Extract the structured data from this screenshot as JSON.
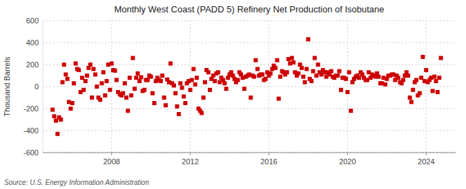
{
  "chart_data": {
    "type": "scatter",
    "title": "Monthly West Coast (PADD 5) Refinery Net Production of Isobutane",
    "y_label": "Thousand Barrels",
    "source": "Source: U.S. Energy Information Administration",
    "color": "#cc0000",
    "marker": "square",
    "grid": true,
    "xlim": [
      2004.5,
      2025.5
    ],
    "xticks": [
      2008,
      2012,
      2016,
      2020,
      2024
    ],
    "ylim": [
      -600,
      600
    ],
    "yticks": [
      -600,
      -400,
      -200,
      0,
      200,
      400,
      600
    ],
    "x": [
      2005.0,
      2005.08,
      2005.17,
      2005.25,
      2005.33,
      2005.42,
      2005.5,
      2005.58,
      2005.67,
      2005.75,
      2005.83,
      2005.92,
      2006.0,
      2006.08,
      2006.17,
      2006.25,
      2006.33,
      2006.42,
      2006.5,
      2006.58,
      2006.67,
      2006.75,
      2006.83,
      2006.92,
      2007.0,
      2007.08,
      2007.17,
      2007.25,
      2007.33,
      2007.42,
      2007.5,
      2007.58,
      2007.67,
      2007.75,
      2007.83,
      2007.92,
      2008.0,
      2008.08,
      2008.17,
      2008.25,
      2008.33,
      2008.42,
      2008.5,
      2008.58,
      2008.67,
      2008.75,
      2008.83,
      2008.92,
      2009.0,
      2009.08,
      2009.17,
      2009.25,
      2009.33,
      2009.42,
      2009.5,
      2009.58,
      2009.67,
      2009.75,
      2009.83,
      2009.92,
      2010.0,
      2010.08,
      2010.17,
      2010.25,
      2010.33,
      2010.42,
      2010.5,
      2010.58,
      2010.67,
      2010.75,
      2010.83,
      2010.92,
      2011.0,
      2011.08,
      2011.17,
      2011.25,
      2011.33,
      2011.42,
      2011.5,
      2011.58,
      2011.67,
      2011.75,
      2011.83,
      2011.92,
      2012.0,
      2012.08,
      2012.17,
      2012.25,
      2012.33,
      2012.42,
      2012.5,
      2012.58,
      2012.67,
      2012.75,
      2012.83,
      2012.92,
      2013.0,
      2013.08,
      2013.17,
      2013.25,
      2013.33,
      2013.42,
      2013.5,
      2013.58,
      2013.67,
      2013.75,
      2013.83,
      2013.92,
      2014.0,
      2014.08,
      2014.17,
      2014.25,
      2014.33,
      2014.42,
      2014.5,
      2014.58,
      2014.67,
      2014.75,
      2014.83,
      2014.92,
      2015.0,
      2015.08,
      2015.17,
      2015.25,
      2015.33,
      2015.42,
      2015.5,
      2015.58,
      2015.67,
      2015.75,
      2015.83,
      2015.92,
      2016.0,
      2016.08,
      2016.17,
      2016.25,
      2016.33,
      2016.42,
      2016.5,
      2016.58,
      2016.67,
      2016.75,
      2016.83,
      2016.92,
      2017.0,
      2017.08,
      2017.17,
      2017.25,
      2017.33,
      2017.42,
      2017.5,
      2017.58,
      2017.67,
      2017.75,
      2017.83,
      2017.92,
      2018.0,
      2018.08,
      2018.17,
      2018.25,
      2018.33,
      2018.42,
      2018.5,
      2018.58,
      2018.67,
      2018.75,
      2018.83,
      2018.92,
      2019.0,
      2019.08,
      2019.17,
      2019.25,
      2019.33,
      2019.42,
      2019.5,
      2019.58,
      2019.67,
      2019.75,
      2019.83,
      2019.92,
      2020.0,
      2020.08,
      2020.17,
      2020.25,
      2020.33,
      2020.42,
      2020.5,
      2020.58,
      2020.67,
      2020.75,
      2020.83,
      2020.92,
      2021.0,
      2021.08,
      2021.17,
      2021.25,
      2021.33,
      2021.42,
      2021.5,
      2021.58,
      2021.67,
      2021.75,
      2021.83,
      2021.92,
      2022.0,
      2022.08,
      2022.17,
      2022.25,
      2022.33,
      2022.42,
      2022.5,
      2022.58,
      2022.67,
      2022.75,
      2022.83,
      2022.92,
      2023.0,
      2023.08,
      2023.17,
      2023.25,
      2023.33,
      2023.42,
      2023.5,
      2023.58,
      2023.67,
      2023.75,
      2023.83,
      2023.92,
      2024.0,
      2024.08,
      2024.17,
      2024.25,
      2024.33,
      2024.42,
      2024.5,
      2024.58,
      2024.67,
      2024.75
    ],
    "values": [
      -210,
      -270,
      -310,
      -430,
      -280,
      -300,
      40,
      200,
      110,
      70,
      -140,
      -200,
      -150,
      30,
      210,
      160,
      150,
      -50,
      80,
      -30,
      50,
      100,
      170,
      200,
      -100,
      160,
      110,
      0,
      -100,
      -120,
      30,
      130,
      -80,
      50,
      200,
      -30,
      210,
      150,
      145,
      60,
      -50,
      -70,
      -80,
      -60,
      30,
      -100,
      -220,
      80,
      -80,
      260,
      -20,
      80,
      120,
      50,
      85,
      -40,
      -30,
      60,
      60,
      100,
      90,
      -60,
      -150,
      50,
      80,
      60,
      50,
      100,
      -100,
      -170,
      65,
      40,
      210,
      30,
      10,
      -60,
      -180,
      -250,
      30,
      -10,
      -90,
      -150,
      30,
      50,
      -30,
      60,
      160,
      20,
      80,
      -200,
      -220,
      -240,
      -100,
      40,
      150,
      130,
      -30,
      70,
      100,
      50,
      120,
      130,
      40,
      80,
      60,
      30,
      -20,
      80,
      110,
      130,
      100,
      70,
      40,
      60,
      130,
      110,
      80,
      -20,
      90,
      100,
      110,
      -100,
      100,
      90,
      240,
      160,
      100,
      110,
      110,
      60,
      70,
      130,
      100,
      120,
      160,
      190,
      170,
      240,
      -110,
      90,
      140,
      130,
      110,
      130,
      250,
      210,
      260,
      220,
      130,
      100,
      120,
      200,
      170,
      90,
      40,
      160,
      430,
      70,
      50,
      140,
      260,
      100,
      200,
      130,
      110,
      150,
      130,
      90,
      130,
      110,
      140,
      90,
      80,
      100,
      100,
      140,
      -30,
      80,
      80,
      70,
      -50,
      130,
      -220,
      40,
      70,
      90,
      100,
      80,
      130,
      110,
      80,
      60,
      60,
      130,
      80,
      110,
      100,
      90,
      120,
      90,
      30,
      30,
      80,
      20,
      70,
      100,
      100,
      110,
      110,
      60,
      100,
      80,
      40,
      30,
      60,
      100,
      130,
      100,
      -100,
      -140,
      -30,
      40,
      60,
      -80,
      -60,
      80,
      270,
      50,
      150,
      40,
      60,
      80,
      -40,
      90,
      50,
      -50,
      80,
      260
    ]
  }
}
